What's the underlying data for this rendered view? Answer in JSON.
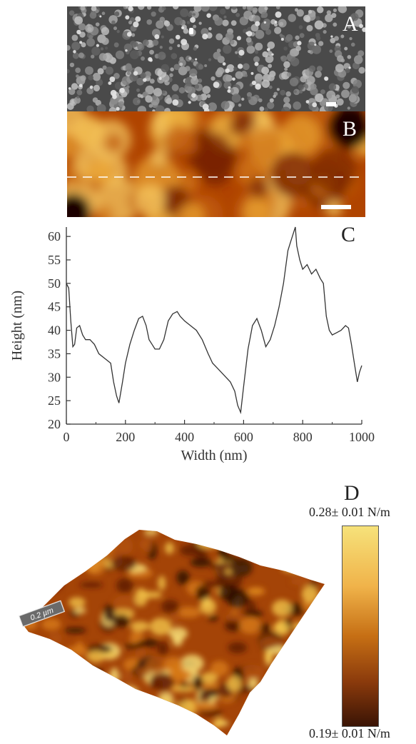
{
  "panels": {
    "A": {
      "letter": "A"
    },
    "B": {
      "letter": "B"
    },
    "C": {
      "letter": "C"
    },
    "D": {
      "letter": "D",
      "scalebar_label": "0.2 µm"
    }
  },
  "colorbar": {
    "max_label": "0.28± 0.01 N/m",
    "min_label": "0.19± 0.01 N/m",
    "color_top": "#f6e27a",
    "color_bottom": "#3a1405"
  },
  "chart_data": {
    "type": "line",
    "xlabel": "Width (nm)",
    "ylabel": "Height (nm)",
    "xlim": [
      0,
      1000
    ],
    "ylim": [
      20,
      62
    ],
    "xticks": [
      0,
      200,
      400,
      600,
      800,
      1000
    ],
    "yticks": [
      20,
      25,
      30,
      35,
      40,
      45,
      50,
      55,
      60
    ],
    "grid": false,
    "series": [
      {
        "x": [
          0,
          8,
          15,
          22,
          28,
          35,
          45,
          55,
          65,
          80,
          95,
          110,
          130,
          150,
          160,
          170,
          178,
          190,
          200,
          215,
          230,
          245,
          258,
          270,
          280,
          290,
          300,
          315,
          330,
          345,
          360,
          375,
          385,
          400,
          420,
          440,
          460,
          480,
          495,
          510,
          525,
          540,
          555,
          570,
          580,
          590,
          600,
          615,
          630,
          645,
          660,
          675,
          690,
          705,
          720,
          735,
          750,
          760,
          770,
          775,
          780,
          790,
          800,
          815,
          830,
          845,
          860,
          870,
          880,
          890,
          900,
          915,
          930,
          945,
          955,
          965,
          975,
          985,
          992,
          1000
        ],
        "y": [
          50,
          49,
          42,
          36.5,
          37,
          40.5,
          41,
          39,
          38,
          38,
          37,
          35,
          34,
          33,
          29,
          26,
          24.5,
          29,
          33,
          37,
          40,
          42.5,
          43,
          41,
          38,
          37,
          36,
          36,
          38,
          42,
          43.5,
          44,
          43,
          42,
          41,
          40,
          38,
          35,
          33,
          32,
          31,
          30,
          29,
          27,
          24,
          22.5,
          28,
          36,
          41,
          42.5,
          40,
          36.5,
          38,
          41,
          45,
          50,
          57,
          59,
          61,
          62,
          58,
          55,
          53,
          54,
          52,
          53,
          51,
          50,
          43,
          40,
          39,
          39.5,
          40,
          41,
          40.5,
          37,
          33,
          29,
          31,
          32.5
        ]
      }
    ]
  }
}
